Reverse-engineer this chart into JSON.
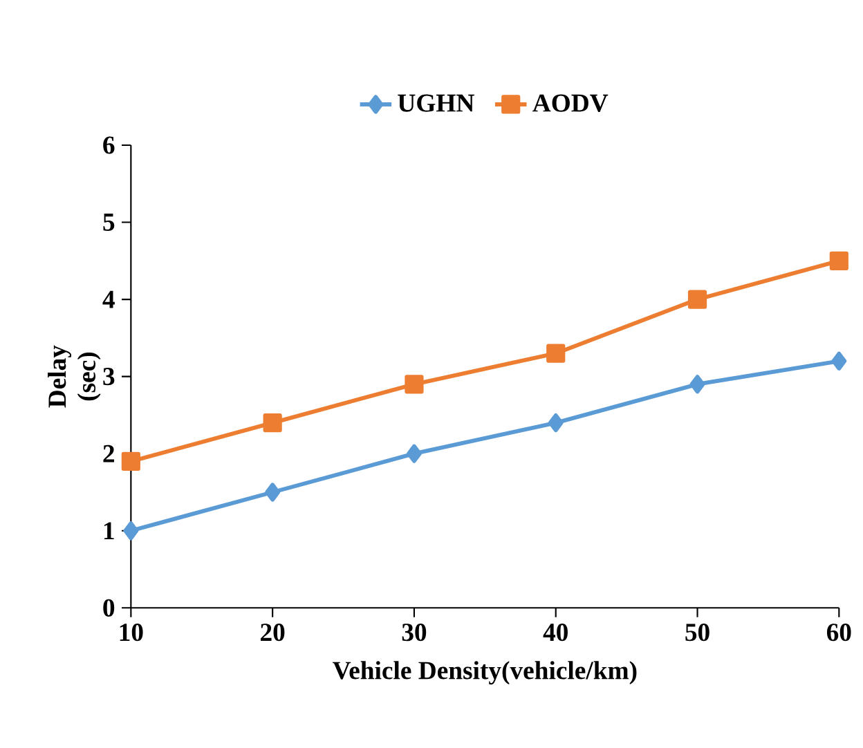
{
  "chart_data": {
    "type": "line",
    "xlabel": "Vehicle Density(vehicle/km)",
    "ylabel": "Delay (sec)",
    "x": [
      10,
      20,
      30,
      40,
      50,
      60
    ],
    "series": [
      {
        "name": "UGHN",
        "color": "#5b9bd5",
        "marker": "diamond",
        "values": [
          1,
          1.5,
          2,
          2.4,
          2.9,
          3.2
        ]
      },
      {
        "name": "AODV",
        "color": "#ed7d31",
        "marker": "square",
        "values": [
          1.9,
          2.4,
          2.9,
          3.3,
          4.0,
          4.5
        ]
      }
    ],
    "xlim": [
      10,
      60
    ],
    "xticks": [
      10,
      20,
      30,
      40,
      50,
      60
    ],
    "ylim": [
      0,
      6
    ],
    "yticks": [
      0,
      1,
      2,
      3,
      4,
      5,
      6
    ],
    "grid": false,
    "legend": "top",
    "line_style": "solid"
  }
}
